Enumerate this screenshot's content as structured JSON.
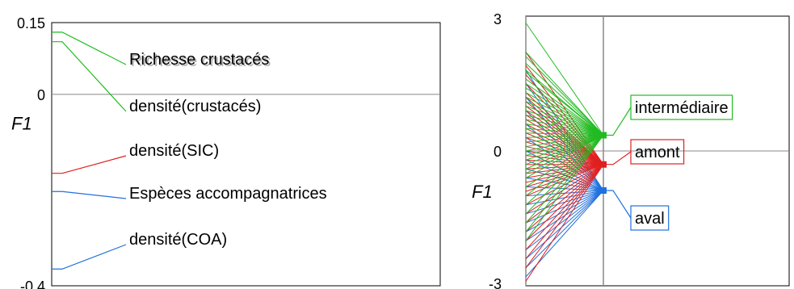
{
  "chart_data": [
    {
      "type": "line",
      "ylabel": "F1",
      "ylim": [
        -0.4,
        0.15
      ],
      "yticks": [
        {
          "value": 0.15,
          "label": "0.15"
        },
        {
          "value": 0,
          "label": "0"
        },
        {
          "value": -0.4,
          "label": "-0.4"
        }
      ],
      "zero_line": true,
      "variables": [
        {
          "label": "Richesse crustacés",
          "y": 0.13,
          "color": "#22bb22",
          "shadow": true
        },
        {
          "label": "densité(crustacés)",
          "y": 0.11,
          "color": "#22bb22",
          "shadow": false
        },
        {
          "label": "densité(SIC)",
          "y": -0.165,
          "color": "#e02020",
          "shadow": false
        },
        {
          "label": "Espèces accompagnatrices",
          "y": -0.203,
          "color": "#2070e0",
          "shadow": false
        },
        {
          "label": "densité(COA)",
          "y": -0.365,
          "color": "#2070e0",
          "shadow": false
        }
      ]
    },
    {
      "type": "line",
      "ylabel": "F1",
      "ylim": [
        -3,
        3
      ],
      "yticks": [
        {
          "value": 3,
          "label": "3"
        },
        {
          "value": 0,
          "label": "0"
        },
        {
          "value": -3,
          "label": "-3"
        }
      ],
      "zero_line": true,
      "groups": [
        {
          "name": "intermédiaire",
          "mean": 0.35,
          "color": "#22bb22",
          "points": [
            2.85,
            2.2,
            2.1,
            1.95,
            1.8,
            1.75,
            1.6,
            1.5,
            1.4,
            1.3,
            1.2,
            1.1,
            1.0,
            0.9,
            0.8,
            0.7,
            0.6,
            0.5,
            0.4,
            0.3,
            0.2,
            0.1,
            0.0,
            -0.1,
            -0.2,
            -0.3,
            -0.4,
            -0.5,
            -0.6,
            -0.8,
            -1.0,
            -1.2,
            -1.4,
            -1.6,
            -1.8,
            -2.0
          ]
        },
        {
          "name": "amont",
          "mean": -0.3,
          "color": "#e02020",
          "points": [
            2.2,
            1.9,
            1.7,
            1.5,
            1.3,
            1.2,
            1.1,
            1.0,
            0.9,
            0.8,
            0.7,
            0.6,
            0.5,
            0.4,
            0.3,
            0.2,
            0.1,
            0.0,
            -0.1,
            -0.2,
            -0.3,
            -0.4,
            -0.5,
            -0.6,
            -0.7,
            -0.8,
            -0.9,
            -1.0,
            -1.2,
            -1.4,
            -1.6,
            -1.8,
            -2.0,
            -2.2,
            -2.4,
            -2.6,
            -2.9
          ]
        },
        {
          "name": "aval",
          "mean": -0.88,
          "color": "#2070e0",
          "points": [
            1.8,
            1.5,
            1.2,
            0.9,
            0.6,
            0.3,
            0.0,
            -0.2,
            -0.4,
            -0.6,
            -0.8,
            -1.0,
            -1.2,
            -1.4,
            -1.6,
            -1.8,
            -2.0,
            -2.2,
            -2.4,
            -2.6,
            -2.8
          ]
        }
      ]
    }
  ]
}
